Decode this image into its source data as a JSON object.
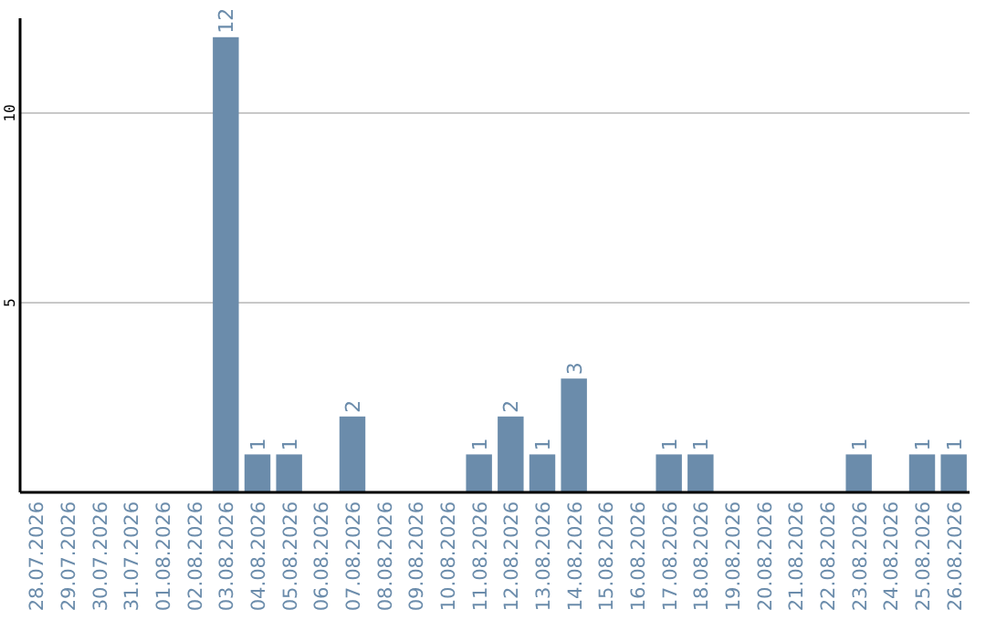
{
  "chart_data": {
    "type": "bar",
    "categories": [
      "28.07.2026",
      "29.07.2026",
      "30.07.2026",
      "31.07.2026",
      "01.08.2026",
      "02.08.2026",
      "03.08.2026",
      "04.08.2026",
      "05.08.2026",
      "06.08.2026",
      "07.08.2026",
      "08.08.2026",
      "09.08.2026",
      "10.08.2026",
      "11.08.2026",
      "12.08.2026",
      "13.08.2026",
      "14.08.2026",
      "15.08.2026",
      "16.08.2026",
      "17.08.2026",
      "18.08.2026",
      "19.08.2026",
      "20.08.2026",
      "21.08.2026",
      "22.08.2026",
      "23.08.2026",
      "24.08.2026",
      "25.08.2026",
      "26.08.2026"
    ],
    "values": [
      0,
      0,
      0,
      0,
      0,
      0,
      12,
      1,
      1,
      0,
      2,
      0,
      0,
      0,
      1,
      2,
      1,
      3,
      0,
      0,
      1,
      1,
      0,
      0,
      0,
      0,
      1,
      0,
      1,
      1
    ],
    "value_labels": [
      null,
      null,
      null,
      null,
      null,
      null,
      "12",
      "1",
      "1",
      null,
      "2",
      null,
      null,
      null,
      "1",
      "2",
      "1",
      "3",
      null,
      null,
      "1",
      "1",
      null,
      null,
      null,
      null,
      "1",
      null,
      "1",
      "1"
    ],
    "color": "#6b8cab",
    "ylim": [
      0,
      12.5
    ],
    "yticks": [
      5,
      10
    ],
    "grid": "y"
  }
}
